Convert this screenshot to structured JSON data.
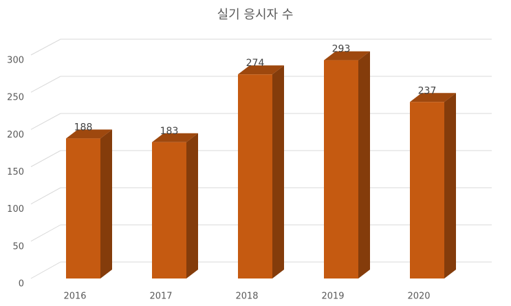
{
  "chart_data": {
    "type": "bar",
    "title": "실기 응시자 수",
    "categories": [
      "2016",
      "2017",
      "2018",
      "2019",
      "2020"
    ],
    "values": [
      188,
      183,
      274,
      293,
      237
    ],
    "color": "#c55a11",
    "ylim": [
      0,
      300
    ],
    "yticks": [
      0,
      50,
      100,
      150,
      200,
      250,
      300
    ],
    "grid": true
  }
}
